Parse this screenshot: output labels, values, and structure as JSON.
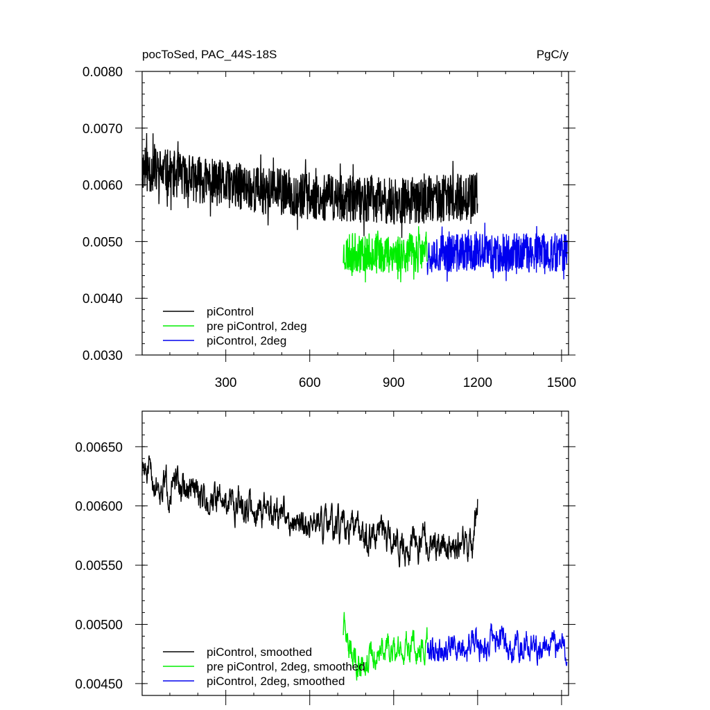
{
  "colors": {
    "black": "#000000",
    "green": "#00ee00",
    "blue": "#0000ee"
  },
  "chart_data": [
    {
      "type": "line",
      "title_left": "pocToSed, PAC_44S-18S",
      "title_right": "PgC/y",
      "xlabel": "",
      "ylabel": "",
      "xlim": [
        1,
        1525
      ],
      "ylim": [
        0.003,
        0.008
      ],
      "xticks": [
        300,
        600,
        900,
        1200,
        1500
      ],
      "xtick_labels": [
        "300",
        "600",
        "900",
        "1200",
        "1500"
      ],
      "yticks": [
        0.003,
        0.004,
        0.005,
        0.006,
        0.007,
        0.008
      ],
      "ytick_labels": [
        "0.0030",
        "0.0040",
        "0.0050",
        "0.0060",
        "0.0070",
        "0.0080"
      ],
      "legend_position": "bottom-left",
      "grid": false,
      "series": [
        {
          "name": "piControl",
          "color": "#000000",
          "x_start": 1,
          "x_end": 1200,
          "trend": [
            [
              1,
              0.0063
            ],
            [
              300,
              0.006
            ],
            [
              600,
              0.0058
            ],
            [
              900,
              0.0057
            ],
            [
              1200,
              0.0058
            ]
          ],
          "noise": 0.00042,
          "seed": 11
        },
        {
          "name": "pre piControl, 2deg",
          "color": "#00ee00",
          "x_start": 720,
          "x_end": 1020,
          "trend": [
            [
              720,
              0.0048
            ],
            [
              1020,
              0.0048
            ]
          ],
          "noise": 0.00035,
          "seed": 23
        },
        {
          "name": "piControl, 2deg",
          "color": "#0000ee",
          "x_start": 1020,
          "x_end": 1520,
          "trend": [
            [
              1020,
              0.0048
            ],
            [
              1520,
              0.0048
            ]
          ],
          "noise": 0.00035,
          "seed": 37
        }
      ]
    },
    {
      "type": "line",
      "title_left": "",
      "title_right": "",
      "xlabel": "",
      "ylabel": "",
      "xlim": [
        1,
        1525
      ],
      "ylim": [
        0.0044,
        0.0068
      ],
      "xticks": [
        300,
        600,
        900,
        1200,
        1500
      ],
      "xtick_labels": [],
      "yticks": [
        0.0045,
        0.005,
        0.0055,
        0.006,
        0.0065
      ],
      "ytick_labels": [
        "0.00450",
        "0.00500",
        "0.00550",
        "0.00600",
        "0.00650"
      ],
      "legend_position": "bottom-left",
      "grid": false,
      "series": [
        {
          "name": "piControl, smoothed",
          "color": "#000000",
          "x_start": 1,
          "x_end": 1200,
          "trend": [
            [
              1,
              0.0063
            ],
            [
              50,
              0.0062
            ],
            [
              300,
              0.00605
            ],
            [
              600,
              0.00585
            ],
            [
              900,
              0.0057
            ],
            [
              1180,
              0.00565
            ],
            [
              1200,
              0.00605
            ]
          ],
          "noise": 0.00012,
          "seed": 51
        },
        {
          "name": "pre piControl, 2deg, smoothed",
          "color": "#00ee00",
          "x_start": 720,
          "x_end": 1020,
          "trend": [
            [
              720,
              0.00495
            ],
            [
              760,
              0.0047
            ],
            [
              1020,
              0.00485
            ]
          ],
          "noise": 0.00011,
          "seed": 63
        },
        {
          "name": "piControl, 2deg, smoothed",
          "color": "#0000ee",
          "x_start": 1020,
          "x_end": 1520,
          "trend": [
            [
              1020,
              0.0048
            ],
            [
              1250,
              0.00485
            ],
            [
              1520,
              0.0048
            ]
          ],
          "noise": 0.00011,
          "seed": 79
        }
      ]
    }
  ]
}
